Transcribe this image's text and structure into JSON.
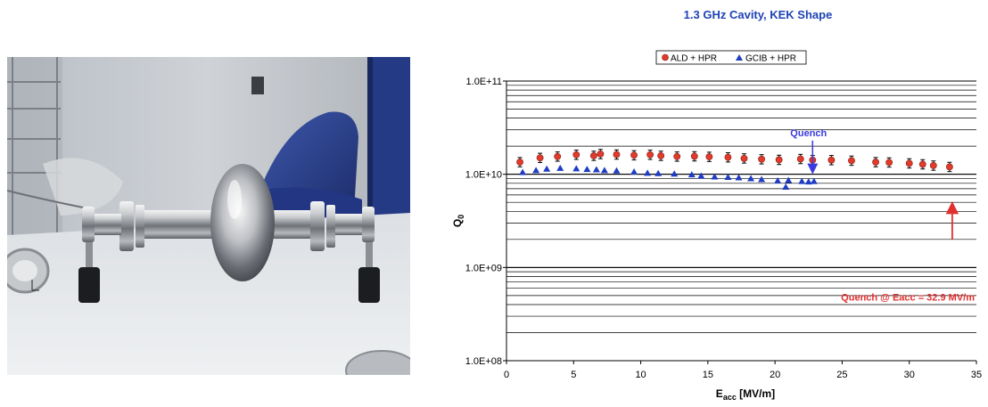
{
  "photo": {
    "subject": "1.3 GHz single-cell niobium cavity with flanges on a lab bench"
  },
  "chart_data": {
    "type": "scatter",
    "title": "1.3 GHz Cavity, KEK Shape",
    "xlabel_main": "E",
    "xlabel_sub": "acc",
    "xlabel_rest": " [MV/m]",
    "ylabel_main": "Q",
    "ylabel_sub": "0",
    "y_scale": "log",
    "xlim": [
      0,
      35
    ],
    "ylim": [
      100000000,
      100000000000
    ],
    "x_ticks": [
      "0",
      "5",
      "10",
      "15",
      "20",
      "25",
      "30",
      "35"
    ],
    "y_ticks": [
      "1.0E+11",
      "1.0E+10",
      "1.0E+09",
      "1.0E+08"
    ],
    "grid": "horizontal",
    "legend_position": "top",
    "colors": {
      "ald": "#e23a2b",
      "gcib": "#1f3cc4",
      "quench_blue": "#3a3ae0",
      "quench_red": "#e23030",
      "grid": "#000000"
    },
    "series": [
      {
        "name": "ALD + HPR",
        "marker": "circle",
        "error_bars": true,
        "points": [
          [
            1.0,
            13500000000
          ],
          [
            2.5,
            15000000000
          ],
          [
            3.8,
            15500000000
          ],
          [
            5.2,
            16200000000
          ],
          [
            6.5,
            15800000000
          ],
          [
            7.0,
            16500000000
          ],
          [
            8.2,
            16300000000
          ],
          [
            9.5,
            16000000000
          ],
          [
            10.7,
            16200000000
          ],
          [
            11.5,
            15800000000
          ],
          [
            12.7,
            15500000000
          ],
          [
            14.0,
            15600000000
          ],
          [
            15.1,
            15400000000
          ],
          [
            16.5,
            15200000000
          ],
          [
            17.7,
            14800000000
          ],
          [
            19.0,
            14500000000
          ],
          [
            20.3,
            14300000000
          ],
          [
            21.9,
            14600000000
          ],
          [
            22.8,
            14200000000
          ],
          [
            24.2,
            14200000000
          ],
          [
            25.7,
            14000000000
          ],
          [
            27.5,
            13500000000
          ],
          [
            28.5,
            13400000000
          ],
          [
            30.0,
            13100000000
          ],
          [
            31.0,
            12800000000
          ],
          [
            31.8,
            12400000000
          ],
          [
            33.0,
            12000000000
          ]
        ]
      },
      {
        "name": "GCIB + HPR",
        "marker": "triangle",
        "error_bars": false,
        "points": [
          [
            1.2,
            10500000000
          ],
          [
            2.2,
            11000000000
          ],
          [
            3.0,
            11400000000
          ],
          [
            4.0,
            11600000000
          ],
          [
            5.2,
            11500000000
          ],
          [
            6.0,
            11300000000
          ],
          [
            6.7,
            11200000000
          ],
          [
            7.3,
            11000000000
          ],
          [
            8.2,
            10900000000
          ],
          [
            9.5,
            10600000000
          ],
          [
            10.5,
            10300000000
          ],
          [
            11.3,
            10200000000
          ],
          [
            12.5,
            10100000000
          ],
          [
            13.8,
            9900000000
          ],
          [
            14.5,
            9600000000
          ],
          [
            15.5,
            9400000000
          ],
          [
            16.5,
            9300000000
          ],
          [
            17.3,
            9200000000
          ],
          [
            18.2,
            9000000000
          ],
          [
            19.0,
            8800000000
          ],
          [
            20.2,
            8500000000
          ],
          [
            20.8,
            7300000000
          ],
          [
            21.0,
            8600000000
          ],
          [
            22.0,
            8400000000
          ],
          [
            22.5,
            8300000000
          ],
          [
            22.9,
            8400000000
          ]
        ]
      }
    ],
    "annotations": [
      {
        "text": "Quench",
        "x": 22.5,
        "y": 28000000000,
        "color": "blue",
        "arrow_to": [
          22.8,
          10000000000
        ]
      },
      {
        "text": "Quench @ Eacc = 32.9 MV/m",
        "x": 33.2,
        "y": 480000000,
        "color": "red",
        "arrow_from": [
          33.2,
          2000000000
        ],
        "arrow_to": [
          33.2,
          5000000000
        ]
      }
    ]
  }
}
